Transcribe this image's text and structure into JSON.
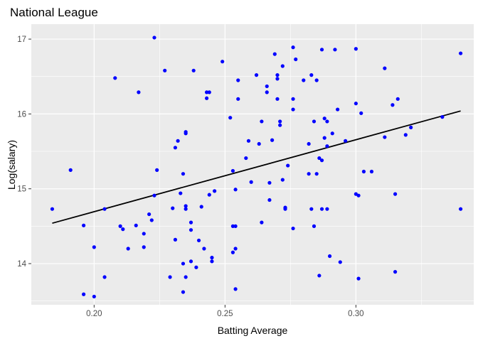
{
  "chart_data": {
    "type": "scatter",
    "title": "National League",
    "xlabel": "Batting Average",
    "ylabel": "Log(salary)",
    "xlim": [
      0.176,
      0.345
    ],
    "ylim": [
      13.45,
      17.2
    ],
    "x_ticks": [
      0.2,
      0.25,
      0.3
    ],
    "x_tick_labels": [
      "0.20",
      "0.25",
      "0.30"
    ],
    "y_ticks": [
      14,
      15,
      16,
      17
    ],
    "y_tick_labels": [
      "14",
      "15",
      "16",
      "17"
    ],
    "grid": true,
    "legend": "none",
    "point_color": "#0000ff",
    "panel_color": "#ebebeb",
    "trend_line": {
      "x": [
        0.184,
        0.34
      ],
      "y": [
        14.54,
        16.04
      ],
      "color": "#000000"
    },
    "points": [
      {
        "x": 0.184,
        "y": 14.73
      },
      {
        "x": 0.191,
        "y": 15.25
      },
      {
        "x": 0.196,
        "y": 13.59
      },
      {
        "x": 0.196,
        "y": 14.51
      },
      {
        "x": 0.2,
        "y": 14.22
      },
      {
        "x": 0.2,
        "y": 13.56
      },
      {
        "x": 0.204,
        "y": 13.82
      },
      {
        "x": 0.204,
        "y": 14.73
      },
      {
        "x": 0.208,
        "y": 16.48
      },
      {
        "x": 0.21,
        "y": 14.5
      },
      {
        "x": 0.211,
        "y": 14.46
      },
      {
        "x": 0.213,
        "y": 14.2
      },
      {
        "x": 0.216,
        "y": 14.51
      },
      {
        "x": 0.217,
        "y": 16.29
      },
      {
        "x": 0.219,
        "y": 14.4
      },
      {
        "x": 0.219,
        "y": 14.22
      },
      {
        "x": 0.221,
        "y": 14.66
      },
      {
        "x": 0.222,
        "y": 14.58
      },
      {
        "x": 0.223,
        "y": 17.02
      },
      {
        "x": 0.223,
        "y": 14.91
      },
      {
        "x": 0.224,
        "y": 15.25
      },
      {
        "x": 0.227,
        "y": 16.58
      },
      {
        "x": 0.229,
        "y": 13.82
      },
      {
        "x": 0.23,
        "y": 14.74
      },
      {
        "x": 0.231,
        "y": 15.55
      },
      {
        "x": 0.231,
        "y": 14.32
      },
      {
        "x": 0.232,
        "y": 15.64
      },
      {
        "x": 0.233,
        "y": 14.94
      },
      {
        "x": 0.234,
        "y": 14.0
      },
      {
        "x": 0.234,
        "y": 15.2
      },
      {
        "x": 0.234,
        "y": 13.62
      },
      {
        "x": 0.235,
        "y": 15.76
      },
      {
        "x": 0.235,
        "y": 15.74
      },
      {
        "x": 0.235,
        "y": 14.77
      },
      {
        "x": 0.235,
        "y": 14.73
      },
      {
        "x": 0.235,
        "y": 13.82
      },
      {
        "x": 0.237,
        "y": 14.03
      },
      {
        "x": 0.237,
        "y": 14.55
      },
      {
        "x": 0.237,
        "y": 14.45
      },
      {
        "x": 0.238,
        "y": 16.58
      },
      {
        "x": 0.239,
        "y": 13.95
      },
      {
        "x": 0.24,
        "y": 14.31
      },
      {
        "x": 0.241,
        "y": 14.76
      },
      {
        "x": 0.242,
        "y": 14.2
      },
      {
        "x": 0.243,
        "y": 16.29
      },
      {
        "x": 0.243,
        "y": 16.21
      },
      {
        "x": 0.244,
        "y": 16.29
      },
      {
        "x": 0.244,
        "y": 14.92
      },
      {
        "x": 0.245,
        "y": 14.08
      },
      {
        "x": 0.245,
        "y": 14.03
      },
      {
        "x": 0.246,
        "y": 14.97
      },
      {
        "x": 0.249,
        "y": 16.7
      },
      {
        "x": 0.252,
        "y": 15.95
      },
      {
        "x": 0.253,
        "y": 15.24
      },
      {
        "x": 0.253,
        "y": 14.5
      },
      {
        "x": 0.253,
        "y": 14.15
      },
      {
        "x": 0.254,
        "y": 14.5
      },
      {
        "x": 0.254,
        "y": 14.2
      },
      {
        "x": 0.254,
        "y": 14.99
      },
      {
        "x": 0.254,
        "y": 13.66
      },
      {
        "x": 0.255,
        "y": 16.45
      },
      {
        "x": 0.255,
        "y": 16.2
      },
      {
        "x": 0.258,
        "y": 15.41
      },
      {
        "x": 0.259,
        "y": 15.64
      },
      {
        "x": 0.26,
        "y": 15.09
      },
      {
        "x": 0.262,
        "y": 16.52
      },
      {
        "x": 0.263,
        "y": 15.6
      },
      {
        "x": 0.264,
        "y": 15.9
      },
      {
        "x": 0.264,
        "y": 14.55
      },
      {
        "x": 0.266,
        "y": 16.37
      },
      {
        "x": 0.266,
        "y": 16.29
      },
      {
        "x": 0.267,
        "y": 15.08
      },
      {
        "x": 0.267,
        "y": 14.85
      },
      {
        "x": 0.268,
        "y": 15.65
      },
      {
        "x": 0.269,
        "y": 16.8
      },
      {
        "x": 0.27,
        "y": 16.52
      },
      {
        "x": 0.27,
        "y": 16.47
      },
      {
        "x": 0.27,
        "y": 16.2
      },
      {
        "x": 0.271,
        "y": 15.9
      },
      {
        "x": 0.271,
        "y": 15.85
      },
      {
        "x": 0.272,
        "y": 16.64
      },
      {
        "x": 0.272,
        "y": 15.12
      },
      {
        "x": 0.273,
        "y": 14.75
      },
      {
        "x": 0.273,
        "y": 14.73
      },
      {
        "x": 0.274,
        "y": 15.31
      },
      {
        "x": 0.276,
        "y": 16.89
      },
      {
        "x": 0.276,
        "y": 16.2
      },
      {
        "x": 0.276,
        "y": 16.06
      },
      {
        "x": 0.276,
        "y": 14.47
      },
      {
        "x": 0.277,
        "y": 16.73
      },
      {
        "x": 0.28,
        "y": 16.45
      },
      {
        "x": 0.282,
        "y": 15.6
      },
      {
        "x": 0.282,
        "y": 15.2
      },
      {
        "x": 0.283,
        "y": 16.52
      },
      {
        "x": 0.283,
        "y": 14.73
      },
      {
        "x": 0.284,
        "y": 15.9
      },
      {
        "x": 0.284,
        "y": 14.5
      },
      {
        "x": 0.285,
        "y": 16.45
      },
      {
        "x": 0.285,
        "y": 15.2
      },
      {
        "x": 0.286,
        "y": 15.41
      },
      {
        "x": 0.286,
        "y": 13.84
      },
      {
        "x": 0.287,
        "y": 16.86
      },
      {
        "x": 0.287,
        "y": 15.38
      },
      {
        "x": 0.287,
        "y": 14.73
      },
      {
        "x": 0.288,
        "y": 15.94
      },
      {
        "x": 0.288,
        "y": 15.68
      },
      {
        "x": 0.289,
        "y": 15.9
      },
      {
        "x": 0.289,
        "y": 15.57
      },
      {
        "x": 0.289,
        "y": 14.73
      },
      {
        "x": 0.29,
        "y": 14.1
      },
      {
        "x": 0.291,
        "y": 15.74
      },
      {
        "x": 0.292,
        "y": 16.86
      },
      {
        "x": 0.293,
        "y": 16.06
      },
      {
        "x": 0.294,
        "y": 14.02
      },
      {
        "x": 0.296,
        "y": 15.64
      },
      {
        "x": 0.3,
        "y": 16.87
      },
      {
        "x": 0.3,
        "y": 16.14
      },
      {
        "x": 0.3,
        "y": 14.93
      },
      {
        "x": 0.301,
        "y": 14.91
      },
      {
        "x": 0.301,
        "y": 13.8
      },
      {
        "x": 0.302,
        "y": 16.01
      },
      {
        "x": 0.303,
        "y": 15.23
      },
      {
        "x": 0.306,
        "y": 15.23
      },
      {
        "x": 0.311,
        "y": 16.61
      },
      {
        "x": 0.311,
        "y": 15.69
      },
      {
        "x": 0.314,
        "y": 16.12
      },
      {
        "x": 0.315,
        "y": 14.93
      },
      {
        "x": 0.315,
        "y": 13.89
      },
      {
        "x": 0.316,
        "y": 16.2
      },
      {
        "x": 0.319,
        "y": 15.72
      },
      {
        "x": 0.321,
        "y": 15.82
      },
      {
        "x": 0.333,
        "y": 15.96
      },
      {
        "x": 0.34,
        "y": 16.81
      },
      {
        "x": 0.34,
        "y": 14.73
      }
    ]
  }
}
